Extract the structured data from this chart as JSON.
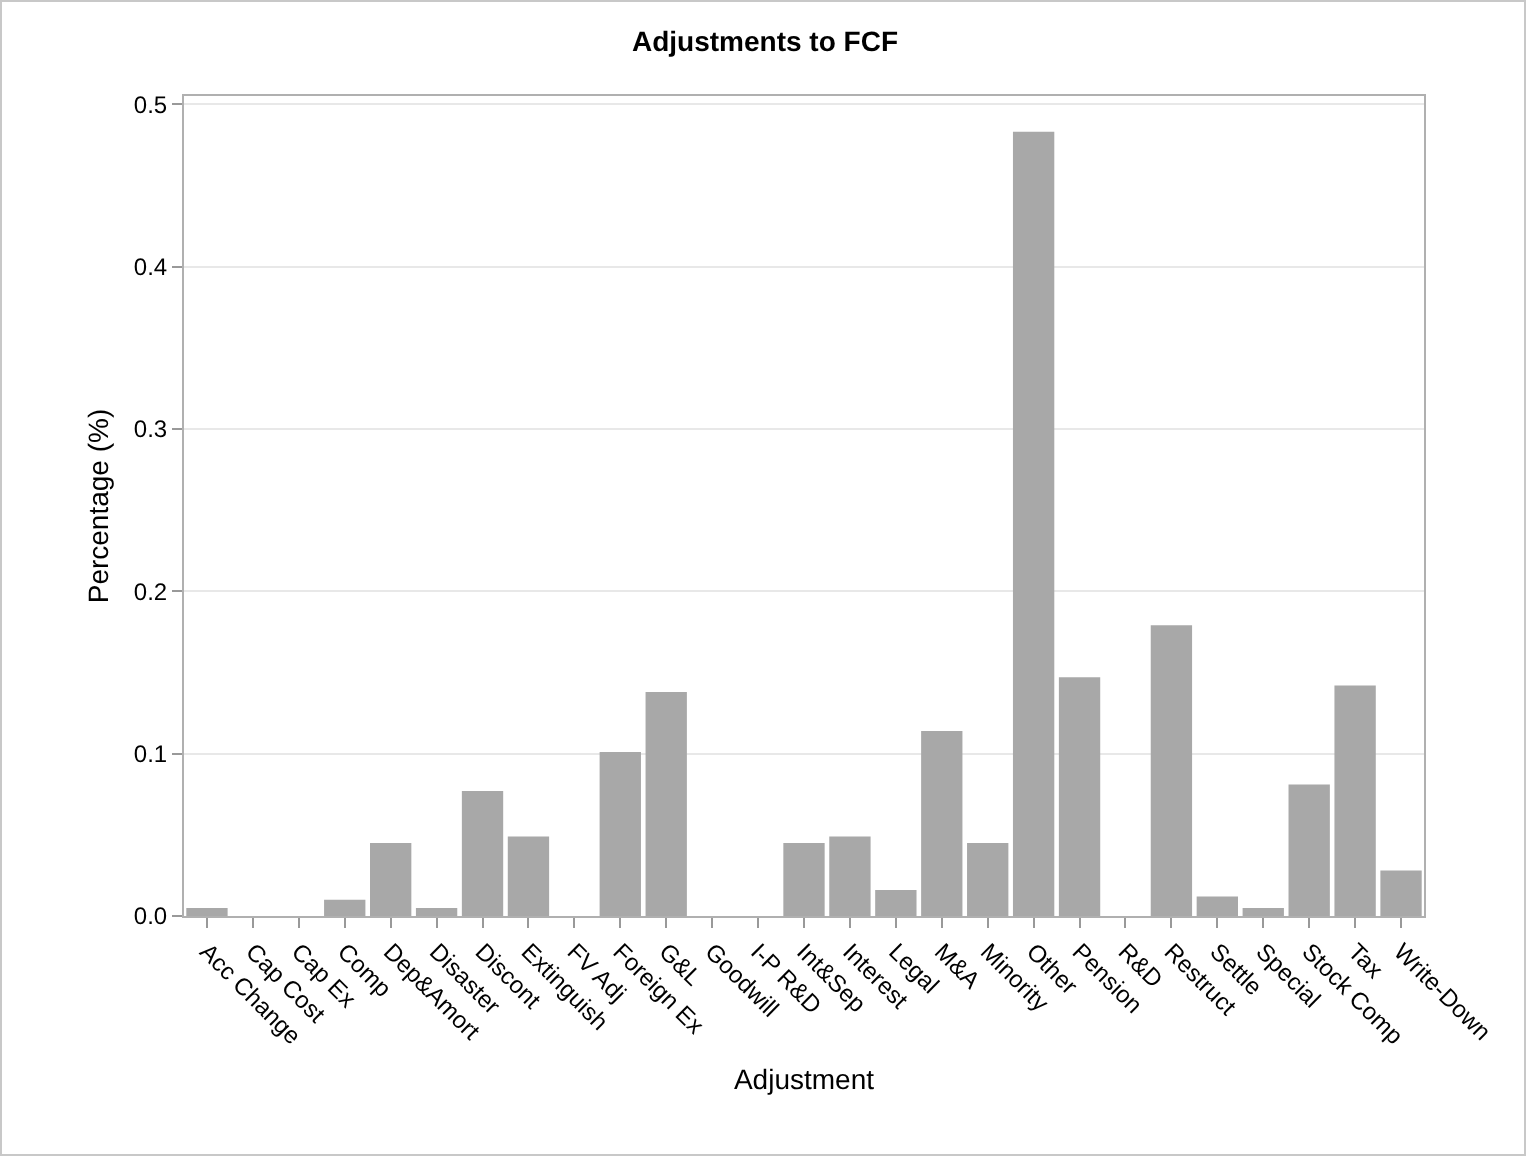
{
  "chart_data": {
    "type": "bar",
    "title": "Adjustments to FCF",
    "xlabel": "Adjustment",
    "ylabel": "Percentage (%)",
    "categories": [
      "Acc Change",
      "Cap Cost",
      "Cap Ex",
      "Comp",
      "Dep&Amort",
      "Disaster",
      "Discont",
      "Extinguish",
      "FV Adj",
      "Foreign Ex",
      "G&L",
      "Goodwill",
      "I-P R&D",
      "Int&Sep",
      "Interest",
      "Legal",
      "M&A",
      "Minority",
      "Other",
      "Pension",
      "R&D",
      "Restruct",
      "Settle",
      "Special",
      "Stock Comp",
      "Tax",
      "Write-Down"
    ],
    "values": [
      0.005,
      0,
      0,
      0.01,
      0.045,
      0.005,
      0.077,
      0.049,
      0,
      0.101,
      0.138,
      0,
      0,
      0.045,
      0.049,
      0.016,
      0.114,
      0.045,
      0.483,
      0.147,
      0,
      0.179,
      0.012,
      0.005,
      0.081,
      0.142,
      0.028
    ],
    "color": "#a8a8a8",
    "ylim": [
      0,
      0.505
    ],
    "yticks": [
      {
        "value": 0,
        "label": "0.0"
      },
      0.1,
      0.2,
      0.3,
      0.4,
      0.5
    ],
    "grid": "y",
    "legend": false
  }
}
